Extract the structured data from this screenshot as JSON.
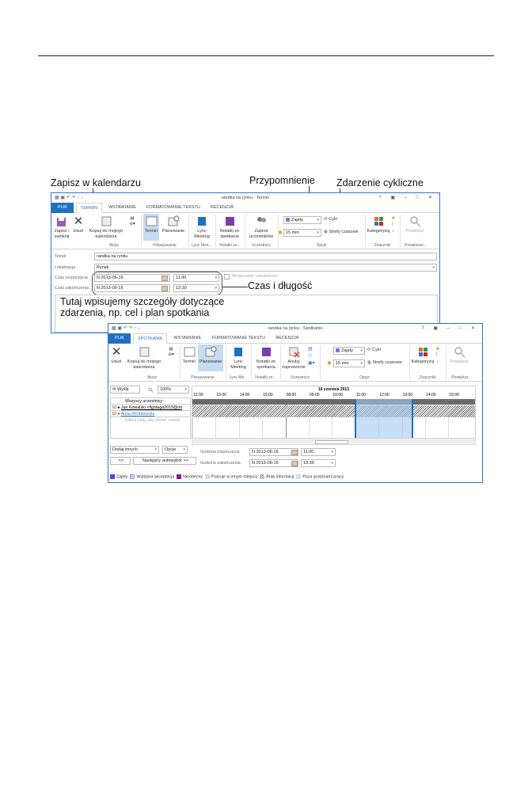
{
  "callouts": {
    "save": "Zapisz w kalendarzu",
    "reminder": "Przypomnienie",
    "recurring": "Zdarzenie cykliczne",
    "time": "Czas i długość",
    "body": "Tutaj wpisujemy szczegóły dotyczące zdarzenia, np. cel i plan spotkania"
  },
  "win1": {
    "title": "randka na rynku - Termin",
    "tabs": [
      "PLIK",
      "TERMIN",
      "WSTAWIANIE",
      "FORMATOWANIE TEKSTU",
      "RECENZJA"
    ],
    "buttons": {
      "save_close": "Zapisz i zamknij",
      "delete": "Usuń",
      "copy": "Kopiuj do mojego kalendarza",
      "appointment": "Termin",
      "scheduling": "Planowanie",
      "lync": "Lync Meeting",
      "notes": "Notatki ze spotkania",
      "invite": "Zaproś uczestników",
      "busy": "Zajęty",
      "recurrence": "Cykl",
      "reminder": "15 min",
      "timezones": "Strefy czasowe",
      "categorize": "Kategoryzuj",
      "zoom": "Powiększ"
    },
    "groups": [
      "Akcje",
      "Pokazywanie",
      "Lync Mee...",
      "Notatki ze...",
      "Uczestnicy",
      "Opcje",
      "Znaczniki",
      "Powiększe..."
    ],
    "form": {
      "subject_label": "Temat",
      "subject": "randka na rynku",
      "location_label": "Lokalizacja",
      "location": "Rynek",
      "start_label": "Czas rozpoczęcia",
      "start_date": "N 2013-06-16",
      "start_time": "11:00",
      "allday": "Wydarzenie całodzienne",
      "end_label": "Czas zakończenia",
      "end_date": "N 2013-06-16",
      "end_time": "13:30"
    }
  },
  "win2": {
    "title": "randka na rynku - Spotkanie",
    "tabs": [
      "PLIK",
      "SPOTKANIE",
      "WSTAWIANIE",
      "FORMATOWANIE TEKSTU",
      "RECENZJA"
    ],
    "buttons": {
      "delete": "Usuń",
      "copy": "Kopiuj do mojego kalendarza",
      "appointment": "Termin",
      "scheduling": "Planowanie",
      "lync": "Lync Meeting",
      "notes": "Notatki ze spotkania",
      "cancel": "Anuluj zaproszenie",
      "busy": "Zajęty",
      "recurrence": "Cykl",
      "reminder": "15 min",
      "timezones": "Strefy czasowe",
      "categorize": "Kategoryzuj",
      "zoom": "Powiększ"
    },
    "groups": [
      "Akcje",
      "Pokazywanie",
      "Lync Me...",
      "Notatki ze...",
      "Uczestnicy",
      "Opcje",
      "Znaczniki",
      "Powiększ..."
    ],
    "send": "Wyślij",
    "zoom_level": "100%",
    "date": "16 czerwca 2013",
    "hours": [
      "12:00",
      "13:00",
      "14:00",
      "15:00",
      "08:00",
      "09:00",
      "10:00",
      "11:00",
      "12:00",
      "13:00",
      "14:00",
      "15:00"
    ],
    "all": "Wszyscy uczestnicy",
    "attendees": [
      "Jan Kowalski <figotaga2015@int",
      "Anna Wróblewska"
    ],
    "add_hint": "Kliknij tutaj, aby dodać nazwę",
    "add_others": "Dodaj innych",
    "options": "Opcje",
    "prev": "<<",
    "next": "Następny autowybór >>",
    "start_label": "Godzina rozpoczęcia",
    "start_date": "N 2013-06-16",
    "start_time": "11:00",
    "end_label": "Godzina zakończenia",
    "end_date": "N 2013-06-16",
    "end_time": "13:30",
    "legend": [
      "Zajęty",
      "Wstępna akceptacja",
      "Nieobecny",
      "Pracuje w innym miejscu",
      "Brak informacji",
      "Poza godzinami pracy"
    ]
  },
  "colors": {
    "accent": "#2b78c8",
    "busy": "#8e6fd1",
    "selection": "#c5dcf2"
  }
}
